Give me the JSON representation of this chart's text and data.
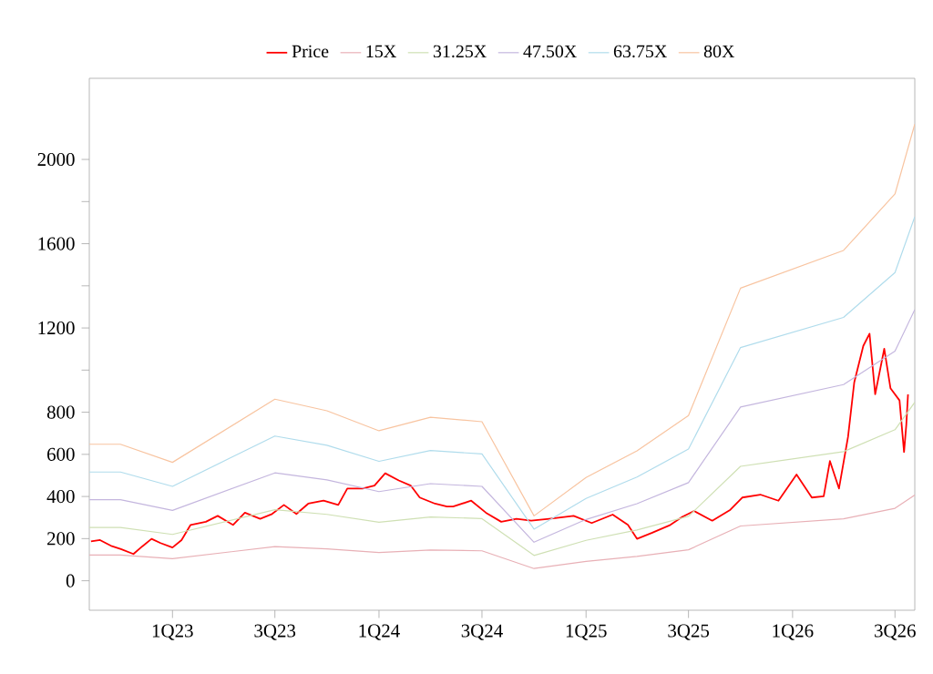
{
  "chart_data": {
    "type": "line",
    "legend": "top",
    "grid": false,
    "marker": "none",
    "line_style": "solid",
    "xlim": [
      "2022-08-07",
      "2026-08-05"
    ],
    "ylim": [
      -140,
      2385
    ],
    "xticks": [
      {
        "value": "2023-01-01",
        "label": "1Q23"
      },
      {
        "value": "2023-07-01",
        "label": "3Q23"
      },
      {
        "value": "2024-01-01",
        "label": "1Q24"
      },
      {
        "value": "2024-07-01",
        "label": "3Q24"
      },
      {
        "value": "2025-01-01",
        "label": "1Q25"
      },
      {
        "value": "2025-07-01",
        "label": "3Q25"
      },
      {
        "value": "2026-01-01",
        "label": "1Q26"
      },
      {
        "value": "2026-07-01",
        "label": "3Q26"
      }
    ],
    "yticks": [
      0,
      200,
      400,
      600,
      800,
      {
        "value": 1000,
        "label": null
      },
      1200,
      {
        "value": 1400,
        "label": null
      },
      1600,
      {
        "value": 1800,
        "label": null
      },
      2000
    ],
    "x": [
      "2022-08-07",
      "2022-10-01",
      "2023-01-01",
      "2023-07-01",
      "2023-10-01",
      "2024-01-01",
      "2024-04-01",
      "2024-07-01",
      "2024-10-01",
      "2025-01-01",
      "2025-04-01",
      "2025-07-01",
      "2025-10-01",
      "2026-04-01",
      "2026-07-01",
      "2026-08-05"
    ],
    "series": [
      {
        "name": "Price",
        "color": "#ff0000",
        "x": [
          "2022-08-10",
          "2022-08-26",
          "2022-09-16",
          "2022-10-02",
          "2022-10-24",
          "2022-11-09",
          "2022-11-25",
          "2022-12-11",
          "2023-01-01",
          "2023-01-17",
          "2023-02-02",
          "2023-03-01",
          "2023-03-22",
          "2023-04-18",
          "2023-05-09",
          "2023-06-05",
          "2023-06-26",
          "2023-07-17",
          "2023-08-08",
          "2023-08-29",
          "2023-09-25",
          "2023-10-21",
          "2023-11-06",
          "2023-12-03",
          "2023-12-24",
          "2024-01-12",
          "2024-02-05",
          "2024-02-26",
          "2024-03-13",
          "2024-04-09",
          "2024-04-30",
          "2024-05-11",
          "2024-06-12",
          "2024-07-08",
          "2024-08-04",
          "2024-08-31",
          "2024-09-26",
          "2024-10-28",
          "2024-12-10",
          "2025-01-11",
          "2025-02-17",
          "2025-03-16",
          "2025-04-01",
          "2025-04-28",
          "2025-05-30",
          "2025-06-20",
          "2025-07-11",
          "2025-08-12",
          "2025-09-13",
          "2025-10-04",
          "2025-11-05",
          "2025-12-07",
          "2026-01-08",
          "2026-02-04",
          "2026-02-25",
          "2026-03-08",
          "2026-03-24",
          "2026-04-09",
          "2026-04-20",
          "2026-05-06",
          "2026-05-17",
          "2026-05-27",
          "2026-06-12",
          "2026-06-23",
          "2026-07-09",
          "2026-07-17",
          "2026-07-21",
          "2026-07-24"
        ],
        "values": [
          187,
          193,
          164,
          150,
          127,
          164,
          199,
          179,
          158,
          193,
          265,
          280,
          308,
          265,
          323,
          294,
          317,
          360,
          317,
          366,
          380,
          360,
          438,
          438,
          452,
          510,
          476,
          452,
          395,
          366,
          352,
          352,
          380,
          323,
          280,
          294,
          285,
          294,
          308,
          274,
          314,
          265,
          199,
          228,
          265,
          303,
          331,
          285,
          337,
          395,
          409,
          380,
          504,
          395,
          401,
          568,
          438,
          683,
          942,
          1115,
          1173,
          885,
          1101,
          914,
          856,
          611,
          741,
          885
        ]
      },
      {
        "name": "15X",
        "color": "#e8b0b6",
        "values": [
          122,
          122,
          105,
          162,
          151,
          134,
          146,
          142,
          58,
          92,
          116,
          147,
          260,
          294,
          344,
          407
        ]
      },
      {
        "name": "31.25X",
        "color": "#cfe0b4",
        "values": [
          253,
          253,
          220,
          337,
          315,
          278,
          303,
          295,
          120,
          192,
          241,
          306,
          543,
          613,
          717,
          847
        ]
      },
      {
        "name": "47.50X",
        "color": "#c4b6de",
        "values": [
          385,
          385,
          334,
          512,
          479,
          423,
          461,
          448,
          183,
          291,
          366,
          466,
          825,
          931,
          1090,
          1287
        ]
      },
      {
        "name": "63.75X",
        "color": "#b0dcec",
        "values": [
          516,
          516,
          448,
          687,
          643,
          567,
          618,
          602,
          245,
          391,
          492,
          625,
          1107,
          1250,
          1463,
          1728
        ]
      },
      {
        "name": "80X",
        "color": "#f8c4a0",
        "values": [
          648,
          648,
          562,
          862,
          807,
          712,
          776,
          755,
          308,
          490,
          617,
          784,
          1389,
          1568,
          1836,
          2168
        ]
      }
    ]
  }
}
